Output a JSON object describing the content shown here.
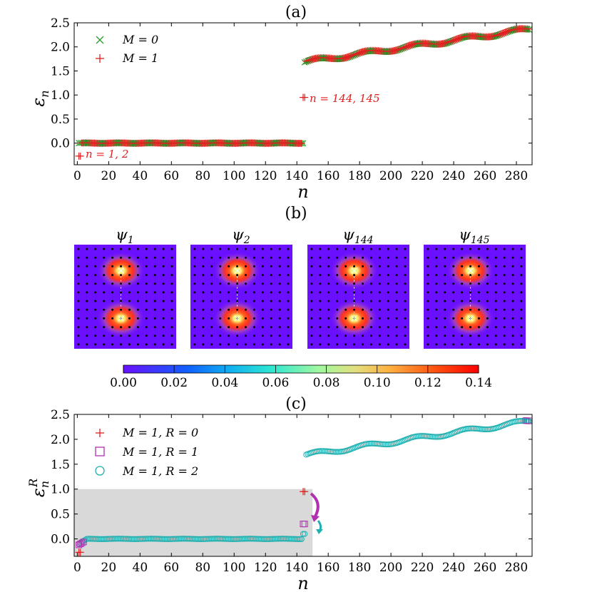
{
  "figure": {
    "panel_labels": [
      "(a)",
      "(b)",
      "(c)"
    ]
  },
  "chart_data": [
    {
      "type": "scatter",
      "panel": "(a)",
      "xlabel": "n",
      "ylabel": "εn",
      "ylabel_main": "ε",
      "ylabel_sub": "n",
      "xlim": [
        -2,
        290
      ],
      "ylim": [
        -0.45,
        2.5
      ],
      "xticks": [
        0,
        20,
        40,
        60,
        80,
        100,
        120,
        140,
        160,
        180,
        200,
        220,
        240,
        260,
        280
      ],
      "yticks": [
        0.0,
        0.5,
        1.0,
        1.5,
        2.0,
        2.5
      ],
      "ytick_labels": [
        "0.0",
        "0.5",
        "1.0",
        "1.5",
        "2.0",
        "2.5"
      ],
      "legend_position": "top-left",
      "series": [
        {
          "name": "M = 0",
          "marker": "x",
          "color": "#2ca02c",
          "description": "n=1..144 near 0.0; n=145..288 from 1.68 to 2.36"
        },
        {
          "name": "M = 1",
          "marker": "+",
          "color": "#e02020",
          "description": "n=1,2 at -0.27; n=3..143 near 0.0; n=144,145 at 0.95; n=146..288 from 1.68 to 2.37"
        }
      ],
      "key_points": {
        "edge_low": {
          "n": [
            1,
            2
          ],
          "value": -0.27
        },
        "edge_mid": {
          "n": [
            144,
            145
          ],
          "value": 0.95
        }
      },
      "annotations": [
        "n = 1, 2",
        "n = 144, 145"
      ]
    },
    {
      "type": "heatmap",
      "panel": "(b)",
      "panels": [
        "ψ1",
        "ψ2",
        "ψ144",
        "ψ145"
      ],
      "panel_main": "ψ",
      "panel_subs": [
        "1",
        "2",
        "144",
        "145"
      ],
      "grid_sites": 12,
      "colorbar": {
        "min": 0.0,
        "max": 0.14,
        "ticks": [
          "0.00",
          "0.02",
          "0.04",
          "0.06",
          "0.08",
          "0.10",
          "0.12",
          "0.14"
        ],
        "colormap": "rainbow"
      },
      "hotspots": [
        {
          "site_col": 5.5,
          "site_row": 3.0
        },
        {
          "site_col": 5.5,
          "site_row": 8.5
        }
      ]
    },
    {
      "type": "scatter",
      "panel": "(c)",
      "xlabel": "n",
      "ylabel": "εnR",
      "ylabel_main": "ε",
      "ylabel_sub": "n",
      "ylabel_sup": "R",
      "xlim": [
        -2,
        290
      ],
      "ylim": [
        -0.35,
        2.5
      ],
      "xticks": [
        0,
        20,
        40,
        60,
        80,
        100,
        120,
        140,
        160,
        180,
        200,
        220,
        240,
        260,
        280
      ],
      "yticks": [
        0.0,
        0.5,
        1.0,
        1.5,
        2.0,
        2.5
      ],
      "ytick_labels": [
        "0.0",
        "0.5",
        "1.0",
        "1.5",
        "2.0",
        "2.5"
      ],
      "legend_position": "top-left",
      "shaded_region": {
        "x": [
          -2,
          150
        ],
        "y": [
          -0.35,
          1.0
        ],
        "color": "#d9d9d9"
      },
      "series": [
        {
          "name": "M = 1, R = 0",
          "marker": "+",
          "color": "#e02020"
        },
        {
          "name": "M = 1, R = 1",
          "marker": "square",
          "color": "#b030b0"
        },
        {
          "name": "M = 1, R = 2",
          "marker": "circle",
          "color": "#20b0b0"
        }
      ],
      "key_points": {
        "R0_edge": {
          "n": [
            144,
            145
          ],
          "value": 0.95
        },
        "R1_edge": {
          "n": [
            144,
            145
          ],
          "value": 0.3
        },
        "R2_edge": {
          "n": [
            144,
            145
          ],
          "value": 0.1
        }
      }
    }
  ]
}
